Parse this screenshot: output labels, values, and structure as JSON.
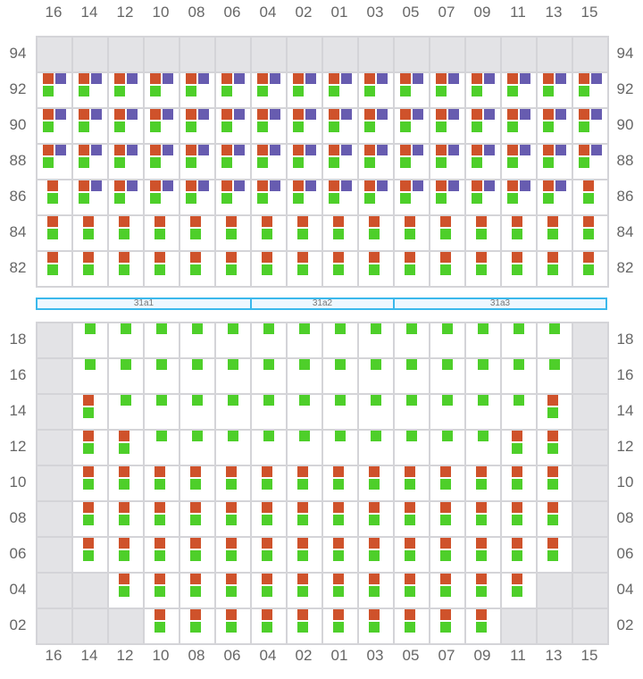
{
  "colors": {
    "occupied": "#cf522b",
    "reserved": "#675cb0",
    "available": "#4ecf2a",
    "disabled": "#e3e3e6",
    "segment_border": "#3bb8ec"
  },
  "columns": [
    "16",
    "14",
    "12",
    "10",
    "08",
    "06",
    "04",
    "02",
    "01",
    "03",
    "05",
    "07",
    "09",
    "11",
    "13",
    "15"
  ],
  "top_grid": {
    "rows": [
      {
        "label": "94",
        "cells": [
          "G",
          "G",
          "G",
          "G",
          "G",
          "G",
          "G",
          "G",
          "G",
          "G",
          "G",
          "G",
          "G",
          "G",
          "G",
          "G"
        ]
      },
      {
        "label": "92",
        "cells": [
          "OPG",
          "OPG",
          "OPG",
          "OPG",
          "OPG",
          "OPG",
          "OPG",
          "OPG",
          "OPG",
          "OPG",
          "OPG",
          "OPG",
          "OPG",
          "OPG",
          "OPG",
          "OPG"
        ]
      },
      {
        "label": "90",
        "cells": [
          "OPG",
          "OPG",
          "OPG",
          "OPG",
          "OPG",
          "OPG",
          "OPG",
          "OPG",
          "OPG",
          "OPG",
          "OPG",
          "OPG",
          "OPG",
          "OPG",
          "OPG",
          "OPG"
        ]
      },
      {
        "label": "88",
        "cells": [
          "OPG",
          "OPG",
          "OPG",
          "OPG",
          "OPG",
          "OPG",
          "OPG",
          "OPG",
          "OPG",
          "OPG",
          "OPG",
          "OPG",
          "OPG",
          "OPG",
          "OPG",
          "OPG"
        ]
      },
      {
        "label": "86",
        "cells": [
          "OG",
          "OPG",
          "OPG",
          "OPG",
          "OPG",
          "OPG",
          "OPG",
          "OPG",
          "OPG",
          "OPG",
          "OPG",
          "OPG",
          "OPG",
          "OPG",
          "OPG",
          "OG"
        ]
      },
      {
        "label": "84",
        "cells": [
          "OG",
          "OG",
          "OG",
          "OG",
          "OG",
          "OG",
          "OG",
          "OG",
          "OG",
          "OG",
          "OG",
          "OG",
          "OG",
          "OG",
          "OG",
          "OG"
        ]
      },
      {
        "label": "82",
        "cells": [
          "OG",
          "OG",
          "OG",
          "OG",
          "OG",
          "OG",
          "OG",
          "OG",
          "OG",
          "OG",
          "OG",
          "OG",
          "OG",
          "OG",
          "OG",
          "OG"
        ]
      }
    ]
  },
  "segments": [
    {
      "label": "31a1",
      "span": 6
    },
    {
      "label": "31a2",
      "span": 4
    },
    {
      "label": "31a3",
      "span": 6
    }
  ],
  "bottom_grid": {
    "rows": [
      {
        "label": "18",
        "cells": [
          "G",
          "g",
          "g",
          "g",
          "g",
          "g",
          "g",
          "g",
          "g",
          "g",
          "g",
          "g",
          "g",
          "g",
          "g",
          "G"
        ]
      },
      {
        "label": "16",
        "cells": [
          "G",
          "g",
          "g",
          "g",
          "g",
          "g",
          "g",
          "g",
          "g",
          "g",
          "g",
          "g",
          "g",
          "g",
          "g",
          "G"
        ]
      },
      {
        "label": "14",
        "cells": [
          "G",
          "OG",
          "g",
          "g",
          "g",
          "g",
          "g",
          "g",
          "g",
          "g",
          "g",
          "g",
          "g",
          "g",
          "OG",
          "G"
        ]
      },
      {
        "label": "12",
        "cells": [
          "G",
          "OG",
          "OG",
          "g",
          "g",
          "g",
          "g",
          "g",
          "g",
          "g",
          "g",
          "g",
          "g",
          "OG",
          "OG",
          "G"
        ]
      },
      {
        "label": "10",
        "cells": [
          "G",
          "OG",
          "OG",
          "OG",
          "OG",
          "OG",
          "OG",
          "OG",
          "OG",
          "OG",
          "OG",
          "OG",
          "OG",
          "OG",
          "OG",
          "G"
        ]
      },
      {
        "label": "08",
        "cells": [
          "G",
          "OG",
          "OG",
          "OG",
          "OG",
          "OG",
          "OG",
          "OG",
          "OG",
          "OG",
          "OG",
          "OG",
          "OG",
          "OG",
          "OG",
          "G"
        ]
      },
      {
        "label": "06",
        "cells": [
          "G",
          "OG",
          "OG",
          "OG",
          "OG",
          "OG",
          "OG",
          "OG",
          "OG",
          "OG",
          "OG",
          "OG",
          "OG",
          "OG",
          "OG",
          "G"
        ]
      },
      {
        "label": "04",
        "cells": [
          "G",
          "G",
          "OG",
          "OG",
          "OG",
          "OG",
          "OG",
          "OG",
          "OG",
          "OG",
          "OG",
          "OG",
          "OG",
          "OG",
          "G",
          "G"
        ]
      },
      {
        "label": "02",
        "cells": [
          "G",
          "G",
          "G",
          "OG",
          "OG",
          "OG",
          "OG",
          "OG",
          "OG",
          "OG",
          "OG",
          "OG",
          "OG",
          "G",
          "G",
          "G"
        ]
      }
    ]
  }
}
